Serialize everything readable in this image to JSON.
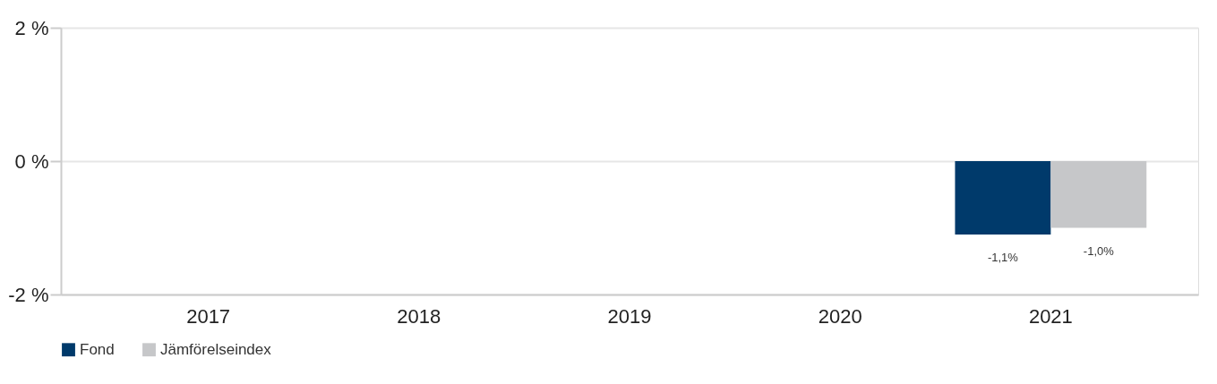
{
  "chart_data": {
    "type": "bar",
    "categories": [
      "2017",
      "2018",
      "2019",
      "2020",
      "2021"
    ],
    "series": [
      {
        "name": "Fond",
        "color": "#003a6b",
        "values": [
          null,
          null,
          null,
          null,
          -1.1
        ],
        "value_labels": [
          null,
          null,
          null,
          null,
          "-1,1%"
        ]
      },
      {
        "name": "Jämförelseindex",
        "color": "#c6c7c9",
        "values": [
          null,
          null,
          null,
          null,
          -1.0
        ],
        "value_labels": [
          null,
          null,
          null,
          null,
          "-1,0%"
        ]
      }
    ],
    "ylim": [
      -2,
      2
    ],
    "yticks": [
      {
        "value": -2,
        "label": "-2 %"
      },
      {
        "value": 0,
        "label": "0 %"
      },
      {
        "value": 2,
        "label": "2 %"
      }
    ],
    "grid": "y",
    "legend": "bottom"
  }
}
